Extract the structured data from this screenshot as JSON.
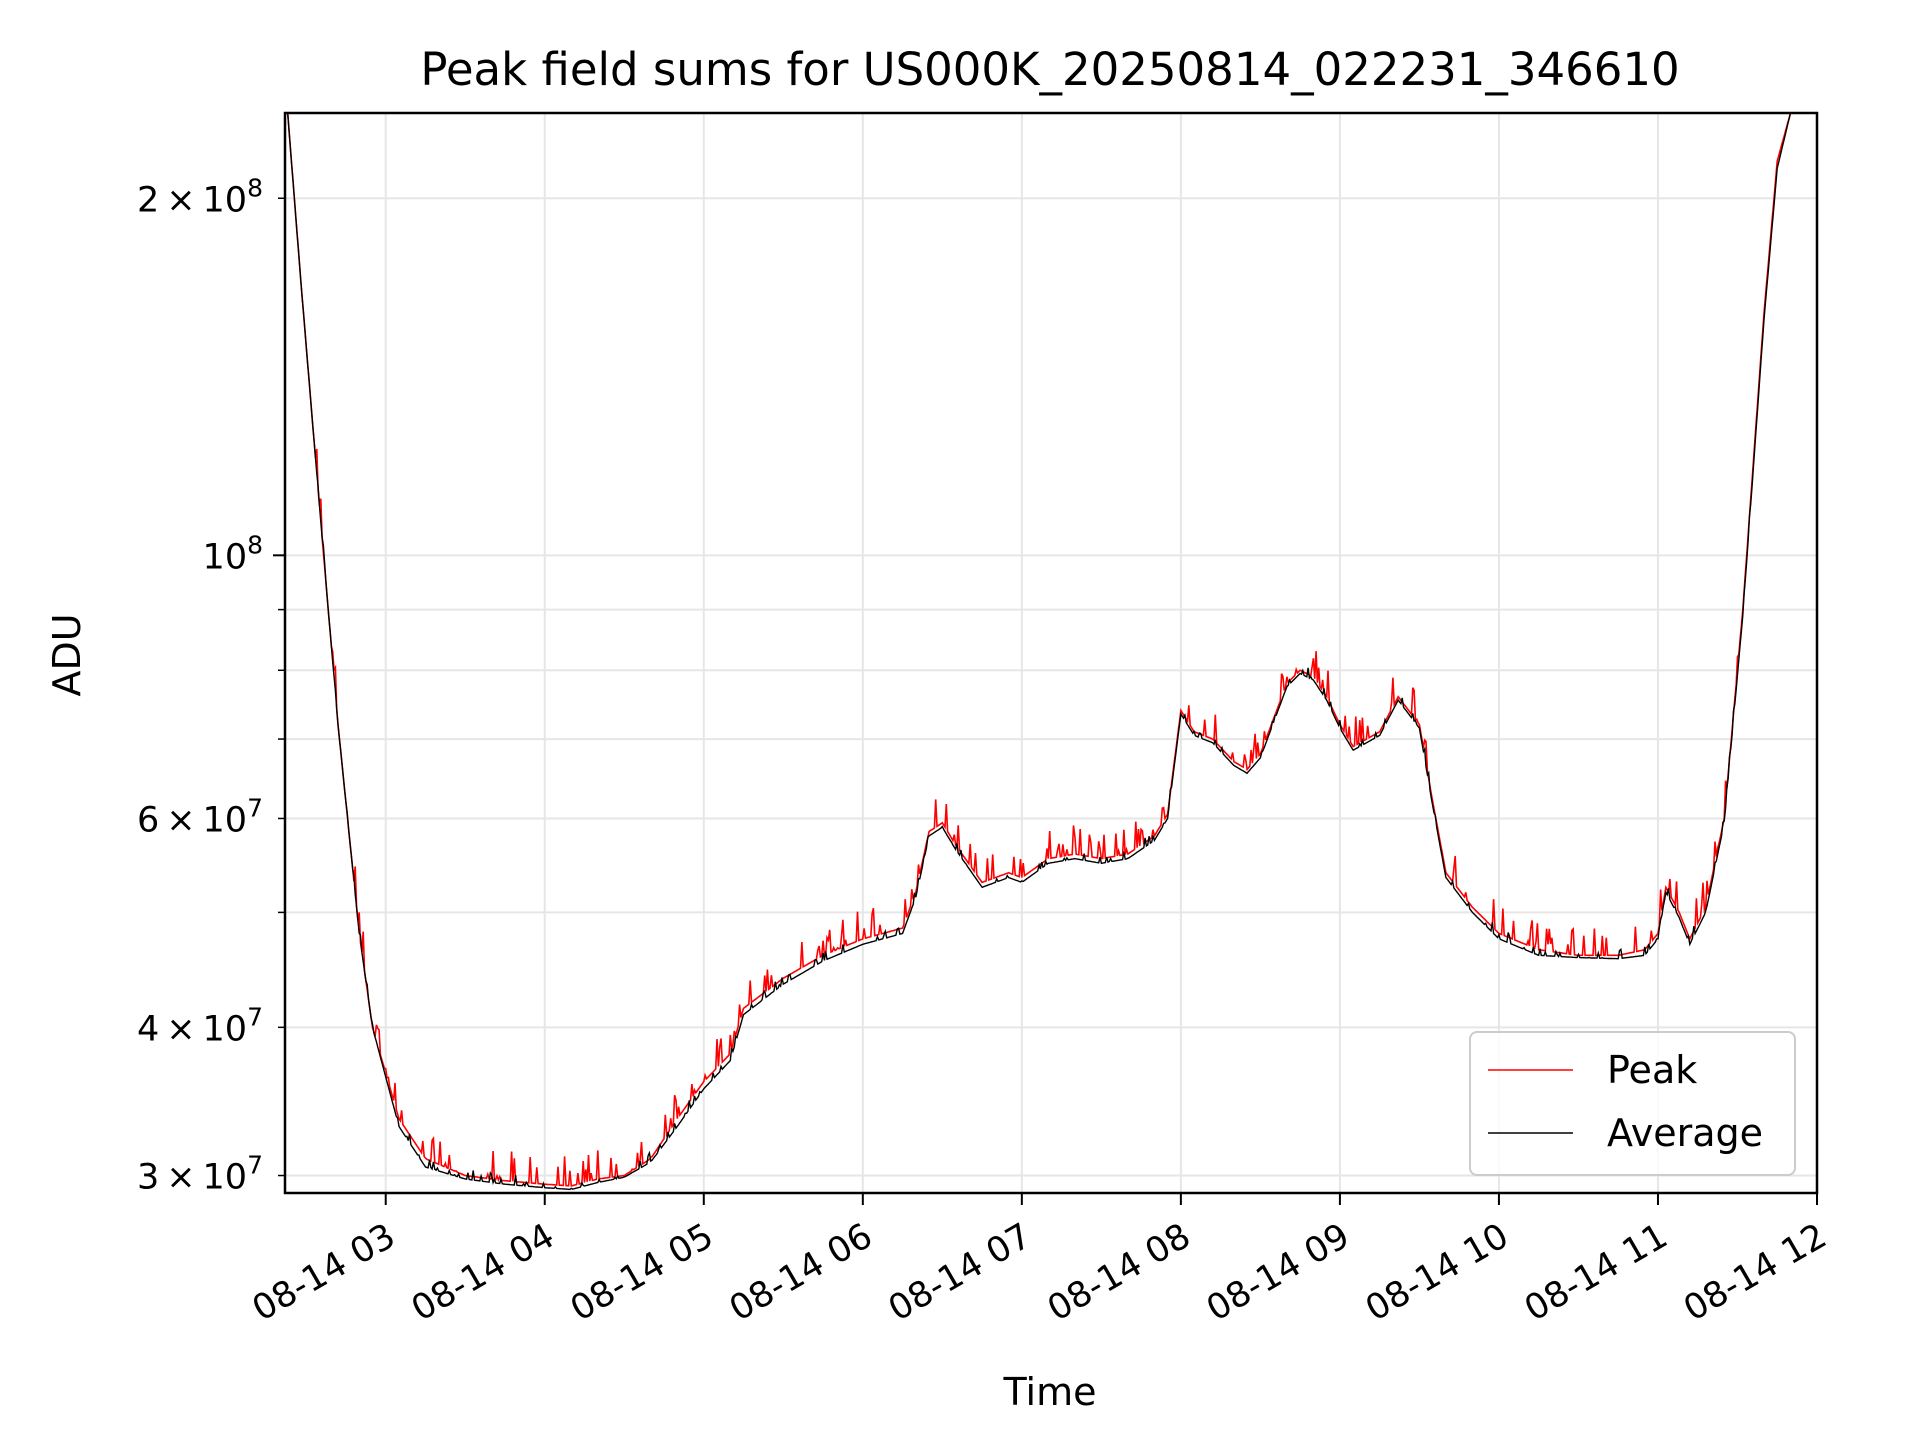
{
  "chart_data": {
    "type": "line",
    "title": "Peak field sums for US000K_20250814_022231_346610",
    "xlabel": "Time",
    "ylabel": "ADU",
    "y_scale": "log",
    "ylim": [
      29000000,
      236000000
    ],
    "xlim": [
      "08-14 02:22",
      "08-14 12:00"
    ],
    "x_ticks": [
      "08-14 03",
      "08-14 04",
      "08-14 05",
      "08-14 06",
      "08-14 07",
      "08-14 08",
      "08-14 09",
      "08-14 10",
      "08-14 11",
      "08-14 12"
    ],
    "y_ticks_major": [
      {
        "value": 100000000,
        "label_base": "10",
        "label_exp": "8",
        "label_mantissa": ""
      }
    ],
    "y_ticks_minor_labeled": [
      {
        "value": 30000000,
        "label_mantissa": "3",
        "label_base": "10",
        "label_exp": "7"
      },
      {
        "value": 40000000,
        "label_mantissa": "4",
        "label_base": "10",
        "label_exp": "7"
      },
      {
        "value": 60000000,
        "label_mantissa": "6",
        "label_base": "10",
        "label_exp": "7"
      },
      {
        "value": 200000000,
        "label_mantissa": "2",
        "label_base": "10",
        "label_exp": "8"
      }
    ],
    "y_ticks_minor_unlabeled": [
      50000000,
      70000000,
      80000000,
      90000000
    ],
    "grid": true,
    "legend_position": "lower-right",
    "series": [
      {
        "name": "Peak",
        "color": "#ff0000",
        "noise": 0.06,
        "points": [
          [
            "08-14 02:23",
            236000000
          ],
          [
            "08-14 02:28",
            170000000
          ],
          [
            "08-14 02:35",
            110000000
          ],
          [
            "08-14 02:42",
            72000000
          ],
          [
            "08-14 02:50",
            48000000
          ],
          [
            "08-14 02:55",
            40000000
          ],
          [
            "08-14 03:05",
            33500000
          ],
          [
            "08-14 03:15",
            31000000
          ],
          [
            "08-14 03:30",
            30000000
          ],
          [
            "08-14 03:45",
            29700000
          ],
          [
            "08-14 04:00",
            29500000
          ],
          [
            "08-14 04:10",
            29400000
          ],
          [
            "08-14 04:20",
            29800000
          ],
          [
            "08-14 04:30",
            30000000
          ],
          [
            "08-14 04:40",
            31000000
          ],
          [
            "08-14 04:50",
            33500000
          ],
          [
            "08-14 05:00",
            36000000
          ],
          [
            "08-14 05:10",
            38000000
          ],
          [
            "08-14 05:15",
            41500000
          ],
          [
            "08-14 05:30",
            44000000
          ],
          [
            "08-14 05:45",
            46000000
          ],
          [
            "08-14 06:00",
            47500000
          ],
          [
            "08-14 06:15",
            48500000
          ],
          [
            "08-14 06:20",
            52000000
          ],
          [
            "08-14 06:25",
            58500000
          ],
          [
            "08-14 06:30",
            59500000
          ],
          [
            "08-14 06:35",
            57000000
          ],
          [
            "08-14 06:45",
            53000000
          ],
          [
            "08-14 06:55",
            54000000
          ],
          [
            "08-14 07:00",
            53500000
          ],
          [
            "08-14 07:10",
            55500000
          ],
          [
            "08-14 07:20",
            56000000
          ],
          [
            "08-14 07:30",
            55500000
          ],
          [
            "08-14 07:40",
            56000000
          ],
          [
            "08-14 07:50",
            58000000
          ],
          [
            "08-14 07:55",
            60500000
          ],
          [
            "08-14 08:00",
            74000000
          ],
          [
            "08-14 08:05",
            71000000
          ],
          [
            "08-14 08:12",
            70000000
          ],
          [
            "08-14 08:20",
            67000000
          ],
          [
            "08-14 08:25",
            66000000
          ],
          [
            "08-14 08:30",
            68000000
          ],
          [
            "08-14 08:40",
            78000000
          ],
          [
            "08-14 08:45",
            80000000
          ],
          [
            "08-14 08:50",
            79000000
          ],
          [
            "08-14 08:55",
            76000000
          ],
          [
            "08-14 09:00",
            72000000
          ],
          [
            "08-14 09:05",
            69000000
          ],
          [
            "08-14 09:15",
            71000000
          ],
          [
            "08-14 09:22",
            76000000
          ],
          [
            "08-14 09:30",
            72000000
          ],
          [
            "08-14 09:35",
            62000000
          ],
          [
            "08-14 09:40",
            54000000
          ],
          [
            "08-14 09:50",
            50500000
          ],
          [
            "08-14 10:00",
            48000000
          ],
          [
            "08-14 10:15",
            46500000
          ],
          [
            "08-14 10:30",
            46000000
          ],
          [
            "08-14 10:45",
            46000000
          ],
          [
            "08-14 10:55",
            46500000
          ],
          [
            "08-14 11:00",
            48000000
          ],
          [
            "08-14 11:03",
            52500000
          ],
          [
            "08-14 11:08",
            50000000
          ],
          [
            "08-14 11:12",
            47500000
          ],
          [
            "08-14 11:18",
            50500000
          ],
          [
            "08-14 11:25",
            60000000
          ],
          [
            "08-14 11:32",
            90000000
          ],
          [
            "08-14 11:40",
            160000000
          ],
          [
            "08-14 11:45",
            215000000
          ],
          [
            "08-14 11:50",
            236000000
          ]
        ]
      },
      {
        "name": "Average",
        "color": "#000000",
        "noise": 0.02,
        "points": [
          [
            "08-14 02:23",
            236000000
          ],
          [
            "08-14 02:28",
            170000000
          ],
          [
            "08-14 02:35",
            110000000
          ],
          [
            "08-14 02:42",
            72000000
          ],
          [
            "08-14 02:50",
            48000000
          ],
          [
            "08-14 02:55",
            40000000
          ],
          [
            "08-14 03:05",
            33000000
          ],
          [
            "08-14 03:15",
            30500000
          ],
          [
            "08-14 03:30",
            29800000
          ],
          [
            "08-14 03:45",
            29500000
          ],
          [
            "08-14 04:00",
            29300000
          ],
          [
            "08-14 04:10",
            29200000
          ],
          [
            "08-14 04:20",
            29600000
          ],
          [
            "08-14 04:30",
            29900000
          ],
          [
            "08-14 04:40",
            30800000
          ],
          [
            "08-14 04:50",
            33000000
          ],
          [
            "08-14 05:00",
            35500000
          ],
          [
            "08-14 05:10",
            37500000
          ],
          [
            "08-14 05:15",
            41000000
          ],
          [
            "08-14 05:30",
            43500000
          ],
          [
            "08-14 05:45",
            45500000
          ],
          [
            "08-14 06:00",
            47000000
          ],
          [
            "08-14 06:15",
            48000000
          ],
          [
            "08-14 06:20",
            51500000
          ],
          [
            "08-14 06:25",
            58000000
          ],
          [
            "08-14 06:30",
            59000000
          ],
          [
            "08-14 06:35",
            56500000
          ],
          [
            "08-14 06:45",
            52500000
          ],
          [
            "08-14 06:55",
            53500000
          ],
          [
            "08-14 07:00",
            53000000
          ],
          [
            "08-14 07:10",
            55000000
          ],
          [
            "08-14 07:20",
            55500000
          ],
          [
            "08-14 07:30",
            55000000
          ],
          [
            "08-14 07:40",
            55500000
          ],
          [
            "08-14 07:50",
            57500000
          ],
          [
            "08-14 07:55",
            60000000
          ],
          [
            "08-14 08:00",
            73500000
          ],
          [
            "08-14 08:05",
            70500000
          ],
          [
            "08-14 08:12",
            69500000
          ],
          [
            "08-14 08:20",
            66500000
          ],
          [
            "08-14 08:25",
            65500000
          ],
          [
            "08-14 08:30",
            67500000
          ],
          [
            "08-14 08:40",
            77500000
          ],
          [
            "08-14 08:45",
            79500000
          ],
          [
            "08-14 08:50",
            78500000
          ],
          [
            "08-14 08:55",
            75500000
          ],
          [
            "08-14 09:00",
            71500000
          ],
          [
            "08-14 09:05",
            68500000
          ],
          [
            "08-14 09:15",
            70500000
          ],
          [
            "08-14 09:22",
            75500000
          ],
          [
            "08-14 09:30",
            71500000
          ],
          [
            "08-14 09:35",
            61500000
          ],
          [
            "08-14 09:40",
            53500000
          ],
          [
            "08-14 09:50",
            50000000
          ],
          [
            "08-14 10:00",
            47500000
          ],
          [
            "08-14 10:15",
            46000000
          ],
          [
            "08-14 10:30",
            45800000
          ],
          [
            "08-14 10:45",
            45700000
          ],
          [
            "08-14 10:55",
            46000000
          ],
          [
            "08-14 11:00",
            47500000
          ],
          [
            "08-14 11:03",
            52000000
          ],
          [
            "08-14 11:08",
            49500000
          ],
          [
            "08-14 11:12",
            47000000
          ],
          [
            "08-14 11:18",
            50000000
          ],
          [
            "08-14 11:25",
            59500000
          ],
          [
            "08-14 11:32",
            89000000
          ],
          [
            "08-14 11:40",
            158000000
          ],
          [
            "08-14 11:45",
            212000000
          ],
          [
            "08-14 11:50",
            236000000
          ]
        ]
      }
    ]
  }
}
